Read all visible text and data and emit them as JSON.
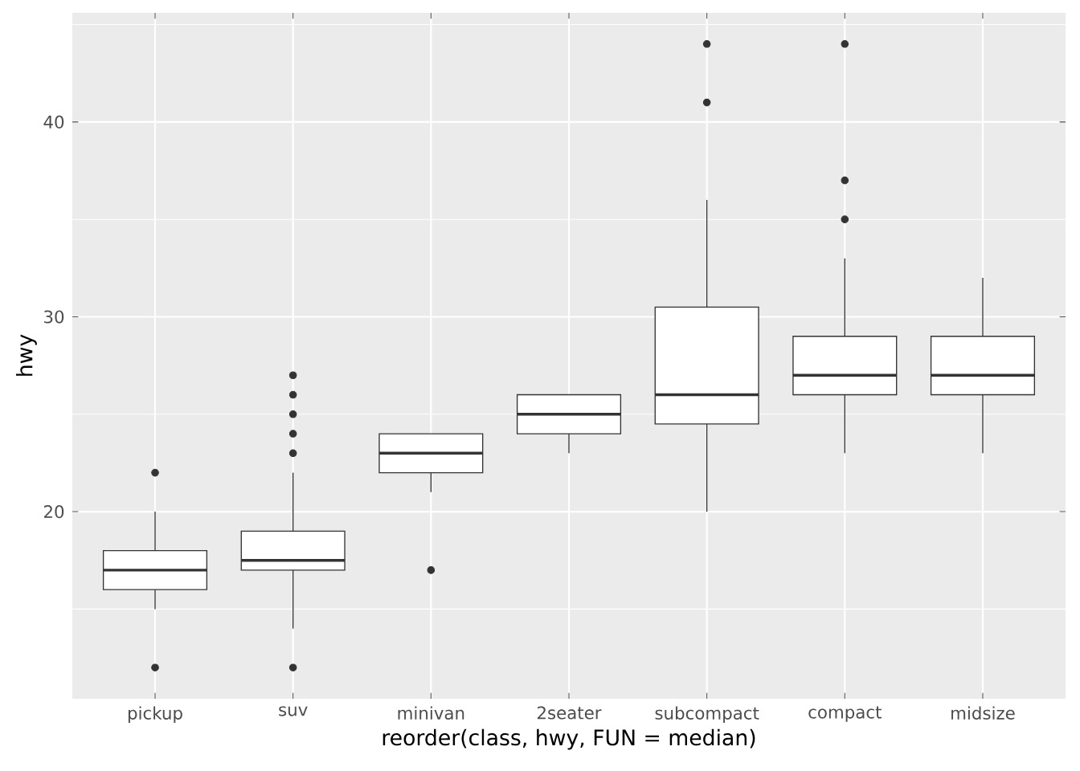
{
  "chart_data": {
    "type": "box",
    "xlabel": "reorder(class, hwy, FUN = median)",
    "ylabel": "hwy",
    "categories": [
      "pickup",
      "suv",
      "minivan",
      "2seater",
      "subcompact",
      "compact",
      "midsize"
    ],
    "series": [
      {
        "color": "#333333",
        "boxes": [
          {
            "low": 15,
            "q1": 16,
            "median": 17,
            "q3": 18,
            "high": 20,
            "outliers": [
              12,
              22
            ]
          },
          {
            "low": 14,
            "q1": 17,
            "median": 17.5,
            "q3": 19,
            "high": 22,
            "outliers": [
              12,
              23,
              24,
              25,
              26,
              27
            ]
          },
          {
            "low": 21,
            "q1": 22,
            "median": 23,
            "q3": 24,
            "high": 24,
            "outliers": [
              17
            ]
          },
          {
            "low": 23,
            "q1": 24,
            "median": 25,
            "q3": 26,
            "high": 26
          },
          {
            "low": 20,
            "q1": 24.5,
            "median": 26,
            "q3": 30.5,
            "high": 36,
            "outliers": [
              41,
              44
            ]
          },
          {
            "low": 23,
            "q1": 26,
            "median": 27,
            "q3": 29,
            "high": 33,
            "outliers": [
              35,
              37,
              44
            ]
          },
          {
            "low": 23,
            "q1": 26,
            "median": 27,
            "q3": 29,
            "high": 32
          }
        ]
      }
    ],
    "ylim": [
      10.4,
      45.6
    ],
    "yticks": [
      20,
      30,
      40
    ],
    "grid": true
  }
}
